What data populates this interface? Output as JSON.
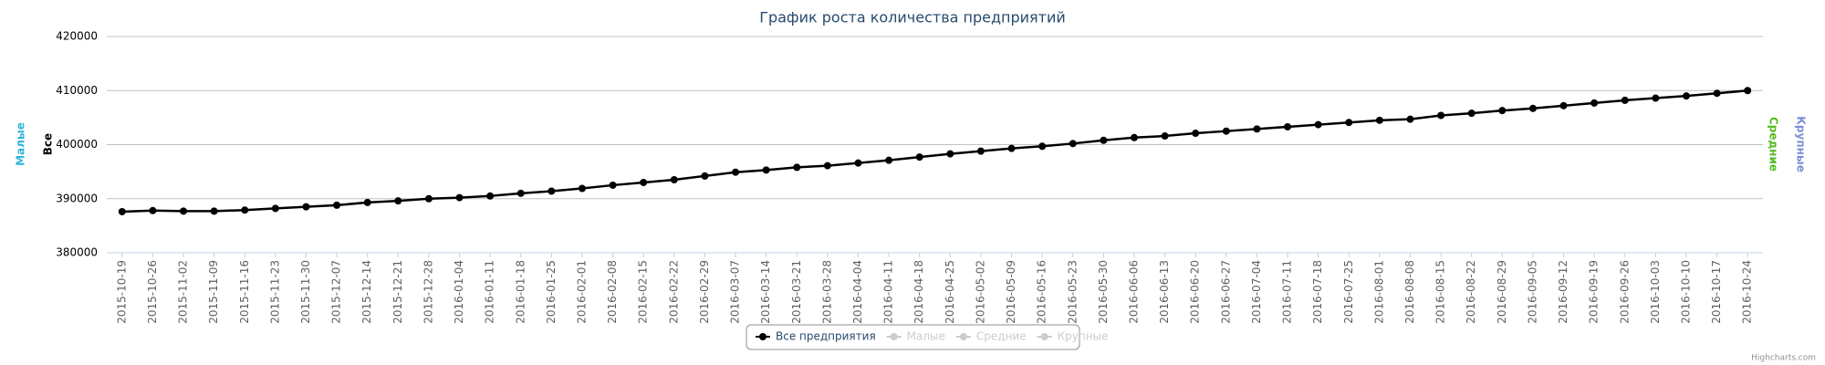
{
  "chart_data": {
    "type": "line",
    "title": "График роста количества предприятий",
    "categories": [
      "2015-10-19",
      "2015-10-26",
      "2015-11-02",
      "2015-11-09",
      "2015-11-16",
      "2015-11-23",
      "2015-11-30",
      "2015-12-07",
      "2015-12-14",
      "2015-12-21",
      "2015-12-28",
      "2016-01-04",
      "2016-01-11",
      "2016-01-18",
      "2016-01-25",
      "2016-02-01",
      "2016-02-08",
      "2016-02-15",
      "2016-02-22",
      "2016-02-29",
      "2016-03-07",
      "2016-03-14",
      "2016-03-21",
      "2016-03-28",
      "2016-04-04",
      "2016-04-11",
      "2016-04-18",
      "2016-04-25",
      "2016-05-02",
      "2016-05-09",
      "2016-05-16",
      "2016-05-23",
      "2016-05-30",
      "2016-06-06",
      "2016-06-13",
      "2016-06-20",
      "2016-06-27",
      "2016-07-04",
      "2016-07-11",
      "2016-07-18",
      "2016-07-25",
      "2016-08-01",
      "2016-08-08",
      "2016-08-15",
      "2016-08-22",
      "2016-08-29",
      "2016-09-05",
      "2016-09-12",
      "2016-09-19",
      "2016-09-26",
      "2016-10-03",
      "2016-10-10",
      "2016-10-17",
      "2016-10-24"
    ],
    "series": [
      {
        "name": "Все предприятия",
        "color": "#000000",
        "values": [
          387600,
          387800,
          387700,
          387700,
          387900,
          388200,
          388500,
          388800,
          389300,
          389600,
          390000,
          390200,
          390500,
          391000,
          391400,
          391900,
          392500,
          393000,
          393500,
          394200,
          394900,
          395300,
          395800,
          396100,
          396600,
          397100,
          397700,
          398300,
          398800,
          399300,
          399700,
          400200,
          400800,
          401300,
          401600,
          402100,
          402500,
          402900,
          403300,
          403700,
          404100,
          404500,
          404700,
          405400,
          405800,
          406300,
          406700,
          407200,
          407700,
          408200,
          408600,
          409000,
          409500,
          410000
        ]
      },
      {
        "name": "Малые",
        "color": "#2fb5d8",
        "visible": false
      },
      {
        "name": "Средние",
        "color": "#55bb22",
        "visible": false
      },
      {
        "name": "Крупные",
        "color": "#7b8fd6",
        "visible": false
      }
    ],
    "y_axis_titles_left": [
      {
        "text": "Малые",
        "color": "#2fb5d8"
      },
      {
        "text": "Все",
        "color": "#000000"
      }
    ],
    "y_axis_titles_right": [
      {
        "text": "Средние",
        "color": "#55bb22"
      },
      {
        "text": "Крупные",
        "color": "#7b8fd6"
      }
    ],
    "ylim": [
      380000,
      420000
    ],
    "yticks": [
      380000,
      390000,
      400000,
      410000,
      420000
    ],
    "grid": true,
    "legend": "bottom",
    "credits": "Highcharts.com"
  }
}
